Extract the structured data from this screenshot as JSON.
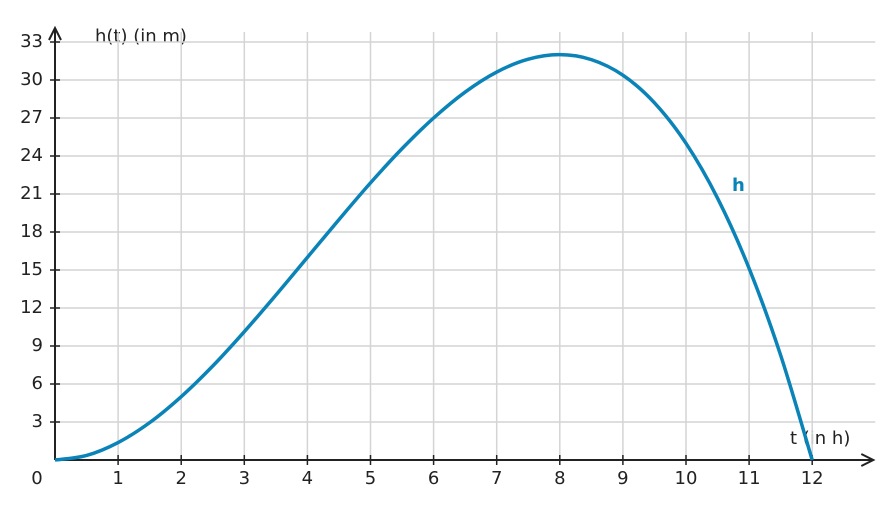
{
  "chart_data": {
    "type": "line",
    "y_label": "h(t) (in m)",
    "x_label": "t (in h)",
    "origin_label": "0",
    "x": [
      0,
      0.5,
      1,
      1.5,
      2,
      2.5,
      3,
      3.5,
      4,
      4.5,
      5,
      5.5,
      6,
      6.5,
      7,
      7.5,
      8,
      8.5,
      9,
      9.5,
      10,
      10.5,
      11,
      11.5,
      12
    ],
    "series": [
      {
        "name": "h",
        "color": "#0a83b8",
        "values": [
          0,
          0.36,
          1.38,
          2.95,
          5,
          7.42,
          10.13,
          13.02,
          16,
          18.98,
          21.88,
          24.58,
          27,
          29.05,
          30.63,
          31.64,
          32,
          31.61,
          30.38,
          28.2,
          25,
          20.67,
          15.13,
          8.27,
          0
        ]
      }
    ],
    "xlim": [
      0,
      13
    ],
    "ylim": [
      0,
      33
    ],
    "xticks": [
      1,
      2,
      3,
      4,
      5,
      6,
      7,
      8,
      9,
      10,
      11,
      12
    ],
    "yticks": [
      3,
      6,
      9,
      12,
      15,
      18,
      21,
      24,
      27,
      30,
      33
    ],
    "grid": true
  }
}
